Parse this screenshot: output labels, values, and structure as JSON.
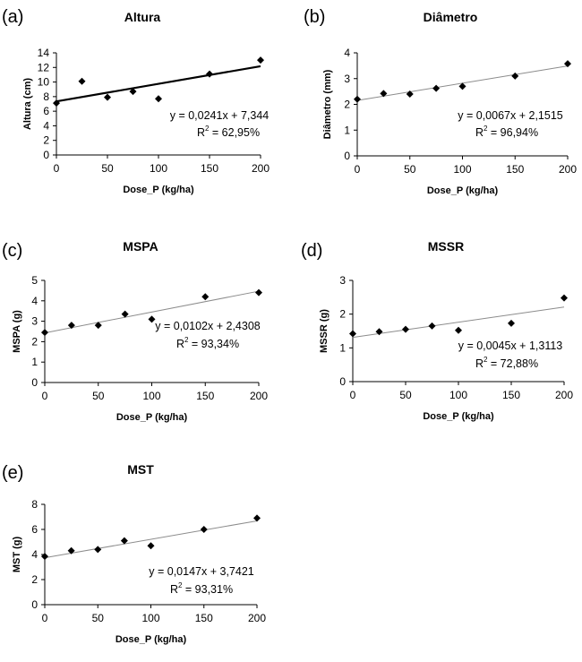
{
  "chart_data": [
    {
      "panel": "(a)",
      "type": "scatter",
      "title": "Altura",
      "xlabel": "Dose_P (kg/ha)",
      "ylabel": "Altura (cm)",
      "xlim": [
        0,
        200
      ],
      "ylim": [
        0,
        14
      ],
      "xticks": [
        0,
        50,
        100,
        150,
        200
      ],
      "yticks": [
        0,
        2,
        4,
        6,
        8,
        10,
        12,
        14
      ],
      "x": [
        0,
        25,
        50,
        75,
        100,
        150,
        200
      ],
      "y": [
        7.1,
        10.1,
        7.9,
        8.7,
        7.7,
        11.1,
        13.0
      ],
      "trendline": {
        "slope": 0.0241,
        "intercept": 7.344,
        "style": "thick"
      },
      "equation": "y = 0,0241x + 7,344",
      "r2_label": "R",
      "r2_exp": "2",
      "r2_value": " = 62,95%"
    },
    {
      "panel": "(b)",
      "type": "scatter",
      "title": "Diâmetro",
      "xlabel": "Dose_P (kg/ha)",
      "ylabel": "Diâmetro (mm)",
      "xlim": [
        0,
        200
      ],
      "ylim": [
        0,
        4
      ],
      "xticks": [
        0,
        50,
        100,
        150,
        200
      ],
      "yticks": [
        0,
        1,
        2,
        3,
        4
      ],
      "x": [
        0,
        25,
        50,
        75,
        100,
        150,
        200
      ],
      "y": [
        2.2,
        2.42,
        2.4,
        2.62,
        2.7,
        3.1,
        3.58
      ],
      "trendline": {
        "slope": 0.0067,
        "intercept": 2.1515,
        "style": "thin"
      },
      "equation": "y = 0,0067x + 2,1515",
      "r2_label": "R",
      "r2_exp": "2",
      "r2_value": " = 96,94%"
    },
    {
      "panel": "(c)",
      "type": "scatter",
      "title": "MSPA",
      "xlabel": "Dose_P (kg/ha)",
      "ylabel": "MSPA (g)",
      "xlim": [
        0,
        200
      ],
      "ylim": [
        0,
        5
      ],
      "xticks": [
        0,
        50,
        100,
        150,
        200
      ],
      "yticks": [
        0,
        1,
        2,
        3,
        4,
        5
      ],
      "x": [
        0,
        25,
        50,
        75,
        100,
        150,
        200
      ],
      "y": [
        2.45,
        2.8,
        2.8,
        3.35,
        3.1,
        4.2,
        4.4
      ],
      "trendline": {
        "slope": 0.0102,
        "intercept": 2.4308,
        "style": "thin"
      },
      "equation": "y = 0,0102x + 2,4308",
      "r2_label": "R",
      "r2_exp": "2",
      "r2_value": " = 93,34%"
    },
    {
      "panel": "(d)",
      "type": "scatter",
      "title": "MSSR",
      "xlabel": "Dose_P (kg/ha)",
      "ylabel": "MSSR (g)",
      "xlim": [
        0,
        200
      ],
      "ylim": [
        0,
        3
      ],
      "xticks": [
        0,
        50,
        100,
        150,
        200
      ],
      "yticks": [
        0,
        1,
        2,
        3
      ],
      "x": [
        0,
        25,
        50,
        75,
        100,
        150,
        200
      ],
      "y": [
        1.42,
        1.48,
        1.55,
        1.65,
        1.52,
        1.73,
        2.48
      ],
      "trendline": {
        "slope": 0.0045,
        "intercept": 1.3113,
        "style": "thin"
      },
      "equation": "y = 0,0045x + 1,3113",
      "r2_label": "R",
      "r2_exp": "2",
      "r2_value": " = 72,88%"
    },
    {
      "panel": "(e)",
      "type": "scatter",
      "title": "MST",
      "xlabel": "Dose_P (kg/ha)",
      "ylabel": "MST (g)",
      "xlim": [
        0,
        200
      ],
      "ylim": [
        0,
        8
      ],
      "xticks": [
        0,
        50,
        100,
        150,
        200
      ],
      "yticks": [
        0,
        2,
        4,
        6,
        8
      ],
      "x": [
        0,
        25,
        50,
        75,
        100,
        150,
        200
      ],
      "y": [
        3.85,
        4.3,
        4.4,
        5.1,
        4.7,
        6.0,
        6.9
      ],
      "trendline": {
        "slope": 0.0147,
        "intercept": 3.7421,
        "style": "thin"
      },
      "equation": "y = 0,0147x + 3,7421",
      "r2_label": "R",
      "r2_exp": "2",
      "r2_value": " = 93,31%"
    }
  ]
}
